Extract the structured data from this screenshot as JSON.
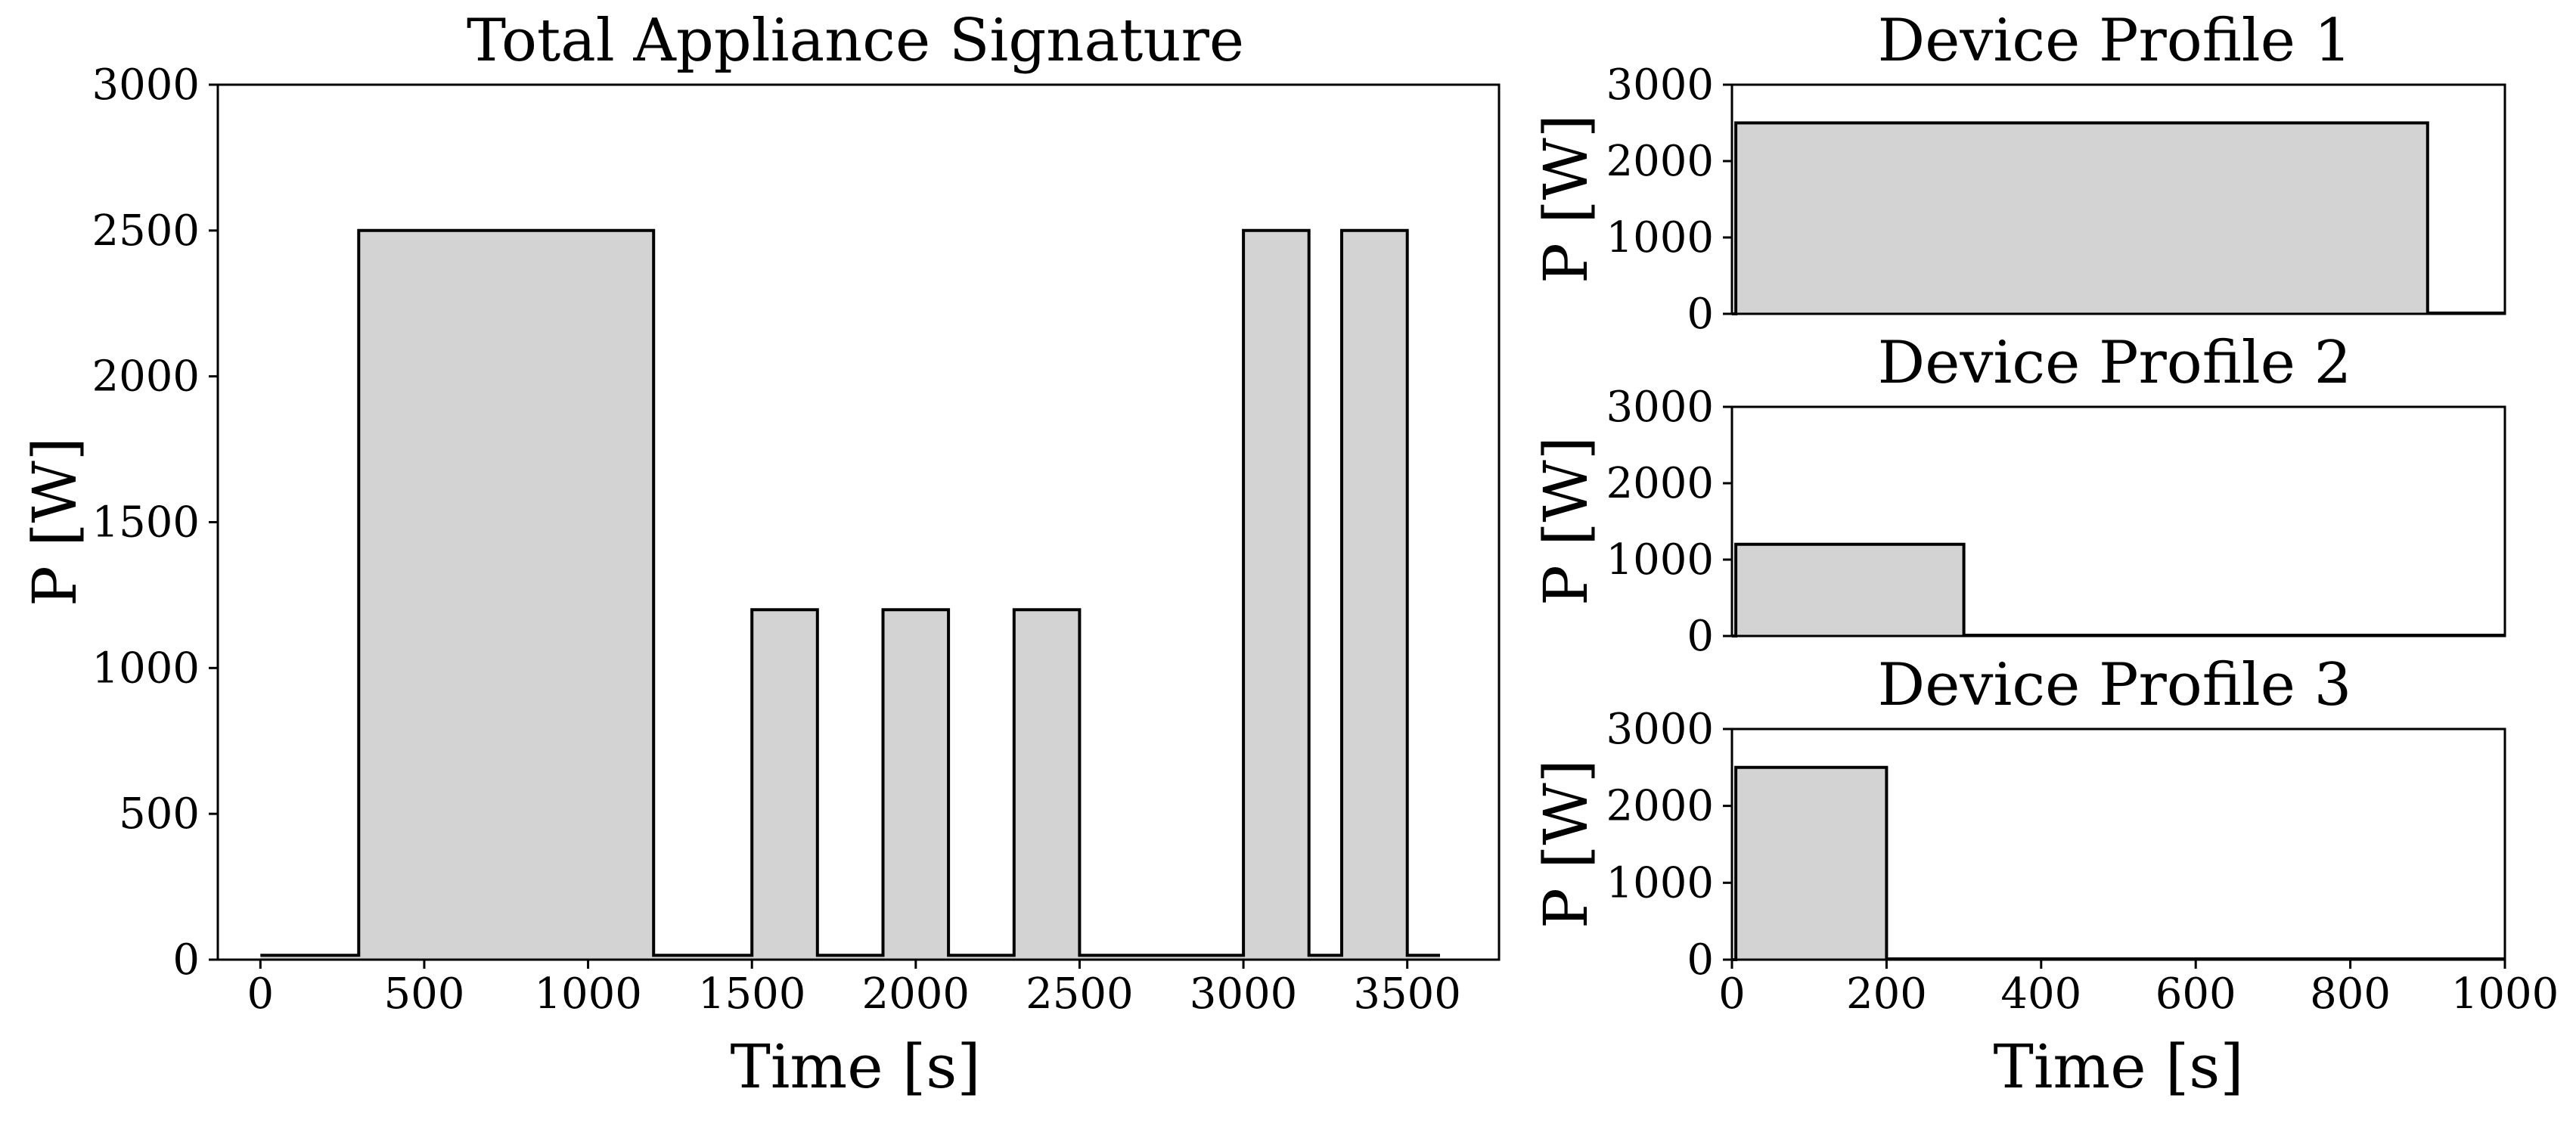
{
  "colors": {
    "fill": "#d3d3d3",
    "line": "#000000",
    "background": "#ffffff"
  },
  "chart_data": [
    {
      "type": "area",
      "title": "Total Appliance Signature",
      "xlabel": "Time [s]",
      "ylabel": "P [W]",
      "xlim": [
        -130,
        3780
      ],
      "ylim": [
        0,
        3000
      ],
      "xticks": [
        0,
        500,
        1000,
        1500,
        2000,
        2500,
        3000,
        3500
      ],
      "yticks": [
        0,
        500,
        1000,
        1500,
        2000,
        2500,
        3000
      ],
      "series": [
        {
          "x": [
            0,
            300,
            300,
            1200,
            1200,
            1500,
            1500,
            1700,
            1700,
            1900,
            1900,
            2100,
            2100,
            2300,
            2300,
            2500,
            2500,
            3000,
            3000,
            3200,
            3200,
            3300,
            3300,
            3500,
            3500,
            3600
          ],
          "y": [
            15,
            15,
            2500,
            2500,
            15,
            15,
            1200,
            1200,
            15,
            15,
            1200,
            1200,
            15,
            15,
            1200,
            1200,
            15,
            15,
            2500,
            2500,
            15,
            15,
            2500,
            2500,
            15,
            15
          ]
        }
      ]
    },
    {
      "type": "area",
      "title": "Device Profile 1",
      "xlabel": "",
      "ylabel": "P [W]",
      "xlim": [
        0,
        1000
      ],
      "ylim": [
        0,
        3000
      ],
      "xticks": [],
      "yticks": [
        0,
        1000,
        2000,
        3000
      ],
      "series": [
        {
          "x": [
            0,
            5,
            5,
            900,
            900,
            1000
          ],
          "y": [
            0,
            0,
            2500,
            2500,
            10,
            10
          ]
        }
      ]
    },
    {
      "type": "area",
      "title": "Device Profile 2",
      "xlabel": "",
      "ylabel": "P [W]",
      "xlim": [
        0,
        1000
      ],
      "ylim": [
        0,
        3000
      ],
      "xticks": [],
      "yticks": [
        0,
        1000,
        2000,
        3000
      ],
      "series": [
        {
          "x": [
            0,
            5,
            5,
            300,
            300,
            1000
          ],
          "y": [
            0,
            0,
            1200,
            1200,
            10,
            10
          ]
        }
      ]
    },
    {
      "type": "area",
      "title": "Device Profile 3",
      "xlabel": "Time [s]",
      "ylabel": "P [W]",
      "xlim": [
        0,
        1000
      ],
      "ylim": [
        0,
        3000
      ],
      "xticks": [
        0,
        200,
        400,
        600,
        800,
        1000
      ],
      "yticks": [
        0,
        1000,
        2000,
        3000
      ],
      "series": [
        {
          "x": [
            0,
            5,
            5,
            200,
            200,
            1000
          ],
          "y": [
            0,
            0,
            2500,
            2500,
            10,
            10
          ]
        }
      ]
    }
  ]
}
